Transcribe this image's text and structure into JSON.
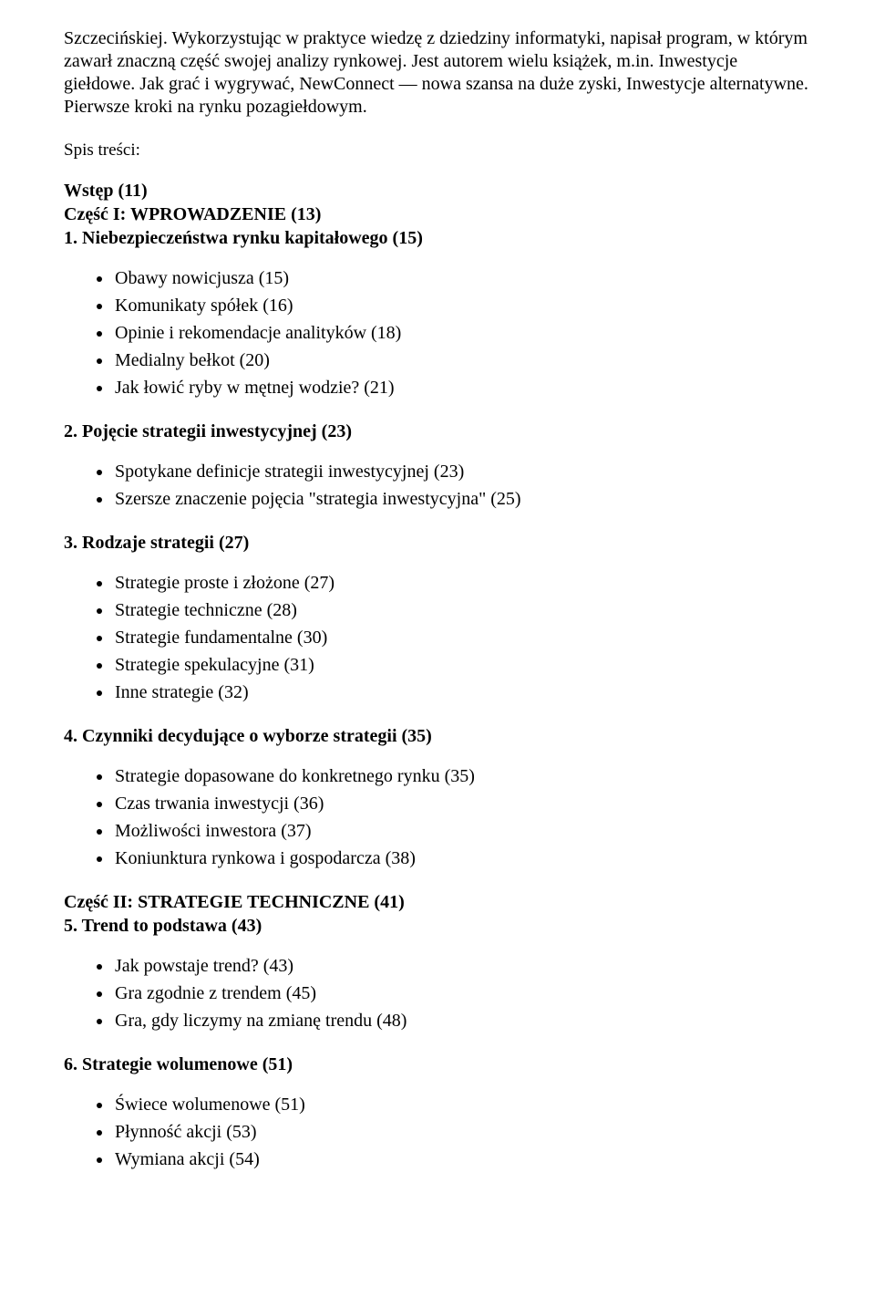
{
  "intro": "Szczecińskiej. Wykorzystując w praktyce wiedzę z dziedziny informatyki, napisał program, w którym zawarł znaczną część swojej analizy rynkowej. Jest autorem wielu książek, m.in. Inwestycje giełdowe. Jak grać i wygrywać, NewConnect — nowa szansa na duże zyski, Inwestycje alternatywne. Pierwsze kroki na rynku pozagiełdowym.",
  "spis": "Spis treści:",
  "sections": [
    {
      "headings": [
        "Wstęp (11)",
        "Część I: WPROWADZENIE (13)",
        "1. Niebezpieczeństwa rynku kapitałowego (15)"
      ],
      "items": [
        "Obawy nowicjusza (15)",
        "Komunikaty spółek (16)",
        "Opinie i rekomendacje analityków (18)",
        "Medialny bełkot (20)",
        "Jak łowić ryby w mętnej wodzie? (21)"
      ]
    },
    {
      "headings": [
        "2. Pojęcie strategii inwestycyjnej (23)"
      ],
      "items": [
        "Spotykane definicje strategii inwestycyjnej (23)",
        "Szersze znaczenie pojęcia \"strategia inwestycyjna\" (25)"
      ]
    },
    {
      "headings": [
        "3. Rodzaje strategii (27)"
      ],
      "items": [
        "Strategie proste i złożone (27)",
        "Strategie techniczne (28)",
        "Strategie fundamentalne (30)",
        "Strategie spekulacyjne (31)",
        "Inne strategie (32)"
      ]
    },
    {
      "headings": [
        "4. Czynniki decydujące o wyborze strategii (35)"
      ],
      "items": [
        "Strategie dopasowane do konkretnego rynku (35)",
        "Czas trwania inwestycji (36)",
        "Możliwości inwestora (37)",
        "Koniunktura rynkowa i gospodarcza (38)"
      ]
    },
    {
      "headings": [
        "Część II: STRATEGIE TECHNICZNE (41)",
        "5. Trend to podstawa (43)"
      ],
      "items": [
        "Jak powstaje trend? (43)",
        "Gra zgodnie z trendem (45)",
        "Gra, gdy liczymy na zmianę trendu (48)"
      ]
    },
    {
      "headings": [
        "6. Strategie wolumenowe (51)"
      ],
      "items": [
        "Świece wolumenowe (51)",
        "Płynność akcji (53)",
        "Wymiana akcji (54)"
      ]
    }
  ]
}
